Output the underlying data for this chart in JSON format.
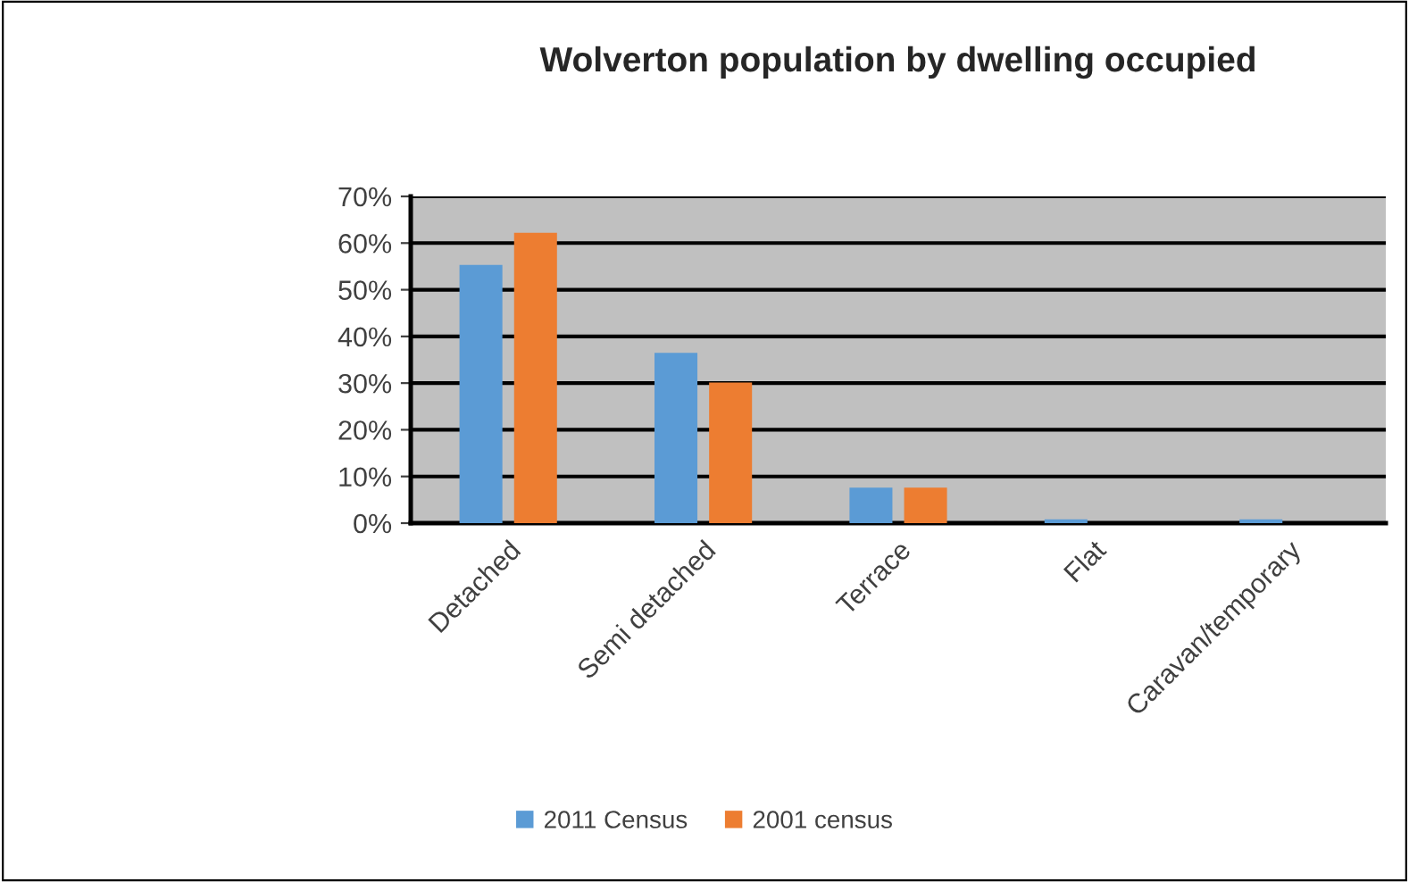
{
  "chart_data": {
    "type": "bar",
    "title": "Wolverton population by dwelling occupied",
    "categories": [
      "Detached",
      "Semi detached",
      "Terrace",
      "Flat",
      "Caravan/temporary"
    ],
    "series": [
      {
        "name": "2011 Census",
        "color": "#5b9bd5",
        "values": [
          55.3,
          36.5,
          7.6,
          0.8,
          0.8
        ]
      },
      {
        "name": "2001 census",
        "color": "#ed7d31",
        "values": [
          62.2,
          30.1,
          7.6,
          0,
          0
        ]
      }
    ],
    "ylim": [
      0,
      70
    ],
    "yticks": [
      {
        "value": 0,
        "label": "0%"
      },
      {
        "value": 10,
        "label": "10%"
      },
      {
        "value": 20,
        "label": "20%"
      },
      {
        "value": 30,
        "label": "30%"
      },
      {
        "value": 40,
        "label": "40%"
      },
      {
        "value": 50,
        "label": "50%"
      },
      {
        "value": 60,
        "label": "60%"
      },
      {
        "value": 70,
        "label": "70%"
      }
    ],
    "grid": "y",
    "legend": "bottom"
  }
}
